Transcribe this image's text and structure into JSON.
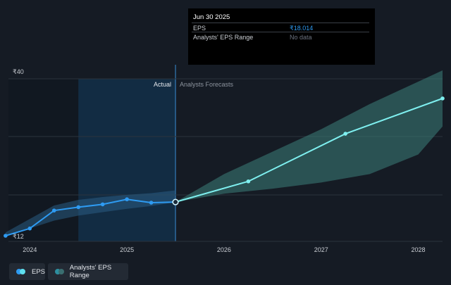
{
  "chart_data": {
    "type": "line",
    "y_axis": {
      "top_label": "₹40",
      "bottom_label": "₹12",
      "ylim": [
        12,
        40
      ]
    },
    "x_ticks": [
      "2024",
      "2025",
      "2026",
      "2027",
      "2028"
    ],
    "xlim": [
      2023.78,
      2028.25
    ],
    "section_labels": {
      "actual": "Actual",
      "forecast": "Analysts Forecasts"
    },
    "divider_x": 2025.5,
    "highlight_start_x": 2024.5,
    "series": [
      {
        "name": "EPS",
        "color": "#2e9bf2",
        "points": [
          {
            "x": 2023.75,
            "y": 12.0
          },
          {
            "x": 2024.0,
            "y": 13.3
          },
          {
            "x": 2024.25,
            "y": 16.5
          },
          {
            "x": 2024.5,
            "y": 17.1
          },
          {
            "x": 2024.75,
            "y": 17.6
          },
          {
            "x": 2025.0,
            "y": 18.5
          },
          {
            "x": 2025.25,
            "y": 17.9
          },
          {
            "x": 2025.5,
            "y": 18.014
          }
        ]
      },
      {
        "name": "EPS Forecast",
        "color": "#7ff0f0",
        "points": [
          {
            "x": 2025.5,
            "y": 18.014
          },
          {
            "x": 2026.25,
            "y": 21.7
          },
          {
            "x": 2027.25,
            "y": 30.2
          },
          {
            "x": 2028.25,
            "y": 36.5
          }
        ]
      }
    ],
    "actual_range_band": [
      {
        "x": 2023.75,
        "low": 12.0,
        "high": 12.6
      },
      {
        "x": 2024.0,
        "low": 13.3,
        "high": 15.0
      },
      {
        "x": 2024.25,
        "low": 14.7,
        "high": 17.4
      },
      {
        "x": 2024.5,
        "low": 15.6,
        "high": 18.4
      },
      {
        "x": 2024.75,
        "low": 16.2,
        "high": 18.9
      },
      {
        "x": 2025.0,
        "low": 16.8,
        "high": 19.3
      },
      {
        "x": 2025.25,
        "low": 17.3,
        "high": 19.6
      },
      {
        "x": 2025.5,
        "low": 18.0,
        "high": 20.1
      }
    ],
    "forecast_range_band": [
      {
        "x": 2025.5,
        "low": 18.014,
        "high": 18.014
      },
      {
        "x": 2026.0,
        "low": 19.5,
        "high": 23.0
      },
      {
        "x": 2026.5,
        "low": 20.4,
        "high": 27.0
      },
      {
        "x": 2027.0,
        "low": 21.5,
        "high": 31.0
      },
      {
        "x": 2027.5,
        "low": 23.0,
        "high": 35.5
      },
      {
        "x": 2028.0,
        "low": 26.5,
        "high": 39.5
      },
      {
        "x": 2028.25,
        "low": 31.5,
        "high": 41.5
      }
    ],
    "grid": true
  },
  "tooltip": {
    "date": "Jun 30 2025",
    "rows": [
      {
        "label": "EPS",
        "value": "₹18.014",
        "color": "#2e9bf2"
      },
      {
        "label": "Analysts' EPS Range",
        "value": "No data",
        "color": "#6c7380"
      }
    ]
  },
  "legend": [
    {
      "label": "EPS",
      "colors": [
        "#2e9bf2",
        "#5fe0ee"
      ]
    },
    {
      "label": "Analysts' EPS Range",
      "colors": [
        "#2d8fa0",
        "#3a6e70"
      ]
    }
  ]
}
